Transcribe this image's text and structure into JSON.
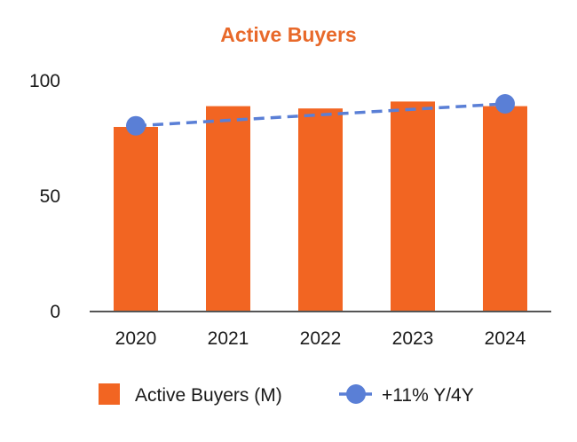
{
  "colors": {
    "bar": "#f26522",
    "trend": "#5a7fd6",
    "title": "#e8692a",
    "axis": "#555555"
  },
  "chart_data": {
    "type": "bar",
    "title": "Active Buyers",
    "xlabel": "",
    "ylabel": "",
    "categories": [
      "2020",
      "2021",
      "2022",
      "2023",
      "2024"
    ],
    "ylim": [
      0,
      100
    ],
    "yticks": [
      "0",
      "50",
      "100"
    ],
    "series": [
      {
        "name": "Active Buyers (M)",
        "type": "bar",
        "values": [
          80,
          89,
          88,
          91,
          89
        ]
      },
      {
        "name": "+11% Y/4Y",
        "type": "line",
        "style": "dashed",
        "points": [
          [
            0,
            80.5
          ],
          [
            4,
            90
          ]
        ]
      }
    ],
    "legend_position": "bottom"
  }
}
